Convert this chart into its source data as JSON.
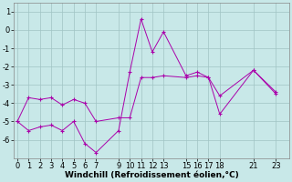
{
  "xlabel": "Windchill (Refroidissement éolien,°C)",
  "background_color": "#c8e8e8",
  "grid_color": "#a0c4c4",
  "line_color": "#aa00aa",
  "x_hours": [
    0,
    1,
    2,
    3,
    4,
    5,
    6,
    7,
    9,
    10,
    11,
    12,
    13,
    15,
    16,
    17,
    18,
    21,
    23
  ],
  "y_line1": [
    -5.0,
    -5.5,
    -5.3,
    -5.2,
    -5.5,
    -5.0,
    -6.2,
    -6.7,
    -5.5,
    -2.3,
    0.6,
    -1.2,
    -0.1,
    -2.5,
    -2.3,
    -2.6,
    -4.6,
    -2.2,
    -3.5
  ],
  "y_line2": [
    -5.0,
    -3.7,
    -3.8,
    -3.7,
    -4.1,
    -3.8,
    -4.0,
    -5.0,
    -4.8,
    -4.8,
    -2.6,
    -2.6,
    -2.5,
    -2.6,
    -2.5,
    -2.6,
    -3.6,
    -2.2,
    -3.4
  ],
  "ylim": [
    -7.0,
    1.5
  ],
  "yticks": [
    1,
    0,
    -1,
    -2,
    -3,
    -4,
    -5,
    -6
  ],
  "x_ticks": [
    0,
    1,
    2,
    3,
    4,
    5,
    6,
    7,
    9,
    10,
    11,
    12,
    13,
    15,
    16,
    17,
    18,
    21,
    23
  ],
  "xlim": [
    -0.3,
    24.2
  ],
  "figsize": [
    3.2,
    2.0
  ],
  "dpi": 100,
  "tick_fontsize": 6,
  "xlabel_fontsize": 6.5
}
